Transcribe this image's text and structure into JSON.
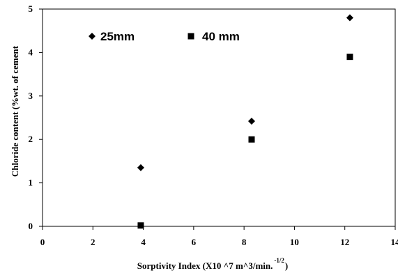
{
  "chart_data": {
    "type": "scatter",
    "title": "",
    "xlabel": "Sorptivity Index (X10 ^7 m^3/min.",
    "xlabel_superscript": "-1/2",
    "xlabel_tail": ")",
    "ylabel": "Chloride content (%wt. of cement",
    "xlim": [
      0,
      14
    ],
    "ylim": [
      0,
      5
    ],
    "x_ticks": [
      0,
      2,
      4,
      6,
      8,
      10,
      12,
      14
    ],
    "y_ticks": [
      0,
      1,
      2,
      3,
      4,
      5
    ],
    "grid": false,
    "legend_position": "top-left",
    "series": [
      {
        "name": "25mm",
        "marker": "diamond",
        "color": "#000000",
        "points": [
          {
            "x": 3.9,
            "y": 1.35
          },
          {
            "x": 8.3,
            "y": 2.42
          },
          {
            "x": 12.2,
            "y": 4.8
          }
        ]
      },
      {
        "name": "40 mm",
        "marker": "square",
        "color": "#000000",
        "points": [
          {
            "x": 3.9,
            "y": 0.02
          },
          {
            "x": 8.3,
            "y": 2.0
          },
          {
            "x": 12.2,
            "y": 3.9
          }
        ]
      }
    ]
  }
}
